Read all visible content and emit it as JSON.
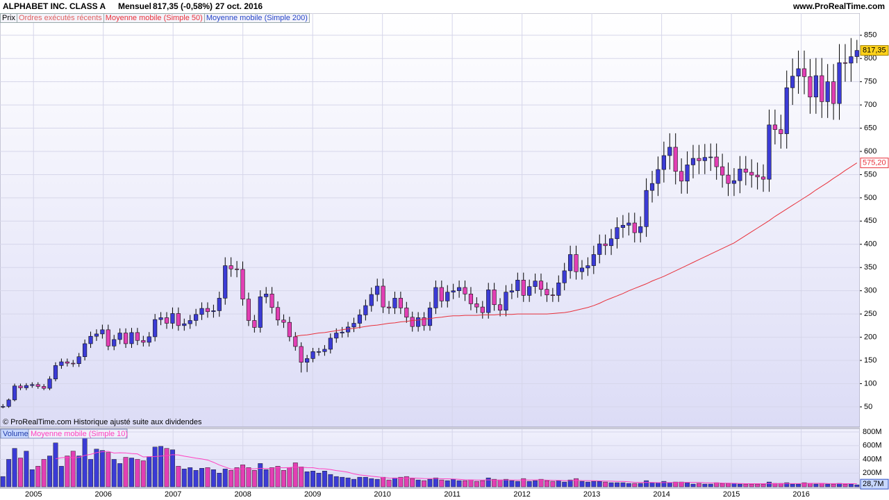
{
  "chart_data": [
    {
      "type": "candlestick",
      "title": "ALPHABET INC. CLASS A",
      "period": "Mensuel",
      "last_change": "817,35 (-0,58%)",
      "date": "27 oct. 2016",
      "source": "www.ProRealTime.com",
      "legend_items": [
        {
          "name": "Prix",
          "color": "#000000"
        },
        {
          "name": "Ordres exécutés récents",
          "color": "#e06060"
        },
        {
          "name": "Moyenne mobile (Simple 200)",
          "color": "#2545c8"
        }
      ],
      "note": "© ProRealTime.com  Historique ajusté suite aux dividendes",
      "up_color": "#3b3bd6",
      "down_color": "#e23fb4",
      "xlim": [
        2004.52,
        2016.84
      ],
      "xticks": [
        2005,
        2006,
        2007,
        2008,
        2009,
        2010,
        2011,
        2012,
        2013,
        2014,
        2015,
        2016
      ],
      "ylim": [
        8,
        896
      ],
      "yticks": [
        50,
        100,
        150,
        200,
        250,
        300,
        350,
        400,
        450,
        500,
        550,
        600,
        650,
        700,
        750,
        800,
        850
      ],
      "grid": true,
      "last_label": "817,35",
      "open": [
        50,
        51,
        65,
        95,
        91,
        96,
        98,
        94,
        90,
        110,
        139,
        147,
        144,
        143,
        158,
        186,
        202,
        207,
        216,
        181,
        195,
        209,
        186,
        210,
        193,
        189,
        201,
        238,
        242,
        230,
        251,
        225,
        229,
        236,
        249,
        262,
        255,
        257,
        284,
        354,
        347,
        346,
        282,
        236,
        221,
        287,
        293,
        264,
        237,
        232,
        201,
        180,
        146,
        154,
        169,
        169,
        174,
        198,
        209,
        211,
        222,
        230,
        248,
        268,
        292,
        310,
        265,
        263,
        284,
        263,
        243,
        223,
        242,
        225,
        263,
        307,
        278,
        297,
        300,
        307,
        293,
        272,
        265,
        253,
        302,
        270,
        258,
        297,
        300,
        323,
        290,
        309,
        321,
        303,
        291,
        290,
        317,
        343,
        378,
        341,
        349,
        354,
        378,
        401,
        397,
        412,
        436,
        441,
        446,
        425,
        438,
        516,
        531,
        561,
        591,
        609,
        557,
        536,
        571,
        585,
        580,
        587,
        588,
        567,
        549,
        531,
        537,
        562,
        555,
        549,
        545,
        540,
        657,
        647,
        638,
        737,
        762,
        778,
        761,
        717,
        763,
        707,
        750,
        703,
        791,
        790,
        804
      ],
      "high": [
        56,
        68,
        100,
        100,
        101,
        103,
        103,
        99,
        116,
        146,
        154,
        154,
        151,
        166,
        195,
        212,
        217,
        227,
        227,
        205,
        219,
        219,
        220,
        220,
        203,
        211,
        250,
        254,
        254,
        264,
        264,
        240,
        248,
        261,
        275,
        275,
        270,
        298,
        372,
        372,
        364,
        363,
        296,
        248,
        301,
        308,
        308,
        277,
        249,
        244,
        211,
        189,
        162,
        177,
        177,
        183,
        208,
        219,
        222,
        233,
        242,
        260,
        281,
        307,
        326,
        326,
        278,
        298,
        298,
        276,
        255,
        254,
        254,
        276,
        322,
        322,
        312,
        315,
        322,
        322,
        308,
        286,
        278,
        317,
        317,
        284,
        312,
        315,
        339,
        339,
        324,
        337,
        337,
        318,
        306,
        333,
        360,
        397,
        397,
        366,
        372,
        397,
        421,
        421,
        433,
        458,
        463,
        468,
        468,
        460,
        542,
        558,
        589,
        621,
        639,
        639,
        585,
        600,
        614,
        614,
        616,
        617,
        617,
        595,
        576,
        564,
        590,
        590,
        583,
        576,
        572,
        690,
        690,
        679,
        774,
        800,
        817,
        817,
        799,
        801,
        801,
        788,
        788,
        831,
        831,
        844,
        840
      ],
      "low": [
        47,
        48,
        62,
        86,
        86,
        91,
        89,
        86,
        86,
        105,
        132,
        137,
        136,
        136,
        150,
        177,
        192,
        197,
        172,
        172,
        185,
        177,
        177,
        183,
        180,
        180,
        191,
        226,
        218,
        218,
        214,
        214,
        218,
        224,
        237,
        242,
        242,
        244,
        270,
        330,
        329,
        268,
        224,
        210,
        210,
        273,
        251,
        225,
        220,
        191,
        171,
        124,
        125,
        146,
        160,
        160,
        165,
        188,
        199,
        200,
        211,
        219,
        236,
        255,
        277,
        252,
        250,
        250,
        250,
        231,
        212,
        212,
        214,
        214,
        250,
        264,
        264,
        282,
        285,
        278,
        258,
        252,
        240,
        240,
        257,
        245,
        245,
        282,
        285,
        276,
        276,
        294,
        288,
        276,
        276,
        276,
        301,
        326,
        324,
        324,
        332,
        336,
        359,
        377,
        377,
        391,
        414,
        419,
        404,
        404,
        416,
        490,
        504,
        533,
        561,
        529,
        509,
        509,
        542,
        551,
        551,
        558,
        539,
        522,
        504,
        504,
        510,
        527,
        522,
        518,
        513,
        513,
        615,
        606,
        606,
        700,
        724,
        723,
        681,
        681,
        672,
        672,
        668,
        668,
        750,
        750,
        790
      ],
      "close": [
        51,
        65,
        95,
        91,
        96,
        98,
        94,
        90,
        110,
        139,
        147,
        144,
        143,
        158,
        186,
        202,
        207,
        216,
        181,
        195,
        209,
        186,
        210,
        193,
        189,
        201,
        238,
        242,
        230,
        251,
        225,
        229,
        236,
        249,
        262,
        255,
        257,
        284,
        354,
        347,
        346,
        282,
        236,
        221,
        287,
        293,
        264,
        237,
        232,
        201,
        180,
        146,
        154,
        169,
        169,
        174,
        198,
        209,
        211,
        222,
        230,
        248,
        268,
        292,
        310,
        265,
        263,
        284,
        263,
        243,
        223,
        242,
        225,
        263,
        307,
        278,
        297,
        300,
        307,
        293,
        272,
        265,
        253,
        302,
        270,
        258,
        297,
        300,
        323,
        290,
        309,
        321,
        303,
        291,
        290,
        317,
        343,
        378,
        341,
        349,
        354,
        378,
        401,
        397,
        412,
        436,
        441,
        446,
        425,
        438,
        516,
        531,
        561,
        591,
        609,
        557,
        536,
        571,
        585,
        580,
        587,
        588,
        567,
        549,
        531,
        537,
        562,
        555,
        549,
        545,
        540,
        657,
        647,
        638,
        737,
        762,
        778,
        761,
        717,
        763,
        707,
        750,
        703,
        791,
        790,
        804,
        817.35
      ],
      "series": [
        {
          "name": "Moyenne mobile (Simple 50)",
          "color": "#e8303a",
          "last_label": "575,20",
          "values": [
            null,
            null,
            null,
            null,
            null,
            null,
            null,
            null,
            null,
            null,
            null,
            null,
            null,
            null,
            null,
            null,
            null,
            null,
            null,
            null,
            null,
            null,
            null,
            null,
            null,
            null,
            null,
            null,
            null,
            null,
            null,
            null,
            null,
            null,
            null,
            null,
            null,
            null,
            null,
            null,
            null,
            null,
            null,
            null,
            null,
            null,
            null,
            null,
            null,
            null,
            202,
            204,
            205,
            207,
            209,
            210,
            212,
            214,
            216,
            218,
            219,
            221,
            223,
            225,
            226,
            228,
            230,
            231,
            233,
            234,
            236,
            237,
            239,
            240,
            242,
            243,
            245,
            246,
            246,
            247,
            247,
            247,
            248,
            248,
            248,
            249,
            249,
            249,
            250,
            250,
            250,
            250,
            250,
            250,
            251,
            252,
            253,
            255,
            258,
            261,
            264,
            268,
            273,
            279,
            284,
            289,
            294,
            300,
            305,
            310,
            315,
            321,
            326,
            331,
            337,
            343,
            349,
            355,
            361,
            367,
            373,
            379,
            385,
            391,
            397,
            403,
            411,
            419,
            427,
            435,
            443,
            451,
            460,
            468,
            476,
            484,
            492,
            500,
            508,
            517,
            525,
            533,
            542,
            550,
            559,
            567,
            575.2
          ]
        }
      ]
    },
    {
      "type": "bar",
      "title": "Volume",
      "ylim": [
        0,
        840
      ],
      "yticks": [
        {
          "value": 200,
          "label": "200M"
        },
        {
          "value": 400,
          "label": "400M"
        },
        {
          "value": 600,
          "label": "600M"
        },
        {
          "value": 800,
          "label": "800M"
        }
      ],
      "last_label": "28,7M",
      "values": [
        150,
        400,
        560,
        420,
        520,
        250,
        300,
        400,
        450,
        640,
        300,
        450,
        520,
        450,
        820,
        400,
        550,
        530,
        500,
        400,
        340,
        430,
        420,
        400,
        380,
        440,
        580,
        590,
        560,
        540,
        300,
        260,
        280,
        240,
        270,
        280,
        250,
        200,
        260,
        240,
        280,
        320,
        280,
        240,
        340,
        250,
        280,
        300,
        240,
        280,
        350,
        290,
        220,
        230,
        200,
        230,
        180,
        150,
        140,
        130,
        110,
        140,
        140,
        120,
        110,
        140,
        100,
        130,
        140,
        150,
        120,
        100,
        90,
        110,
        130,
        100,
        90,
        110,
        90,
        90,
        100,
        80,
        90,
        130,
        110,
        100,
        110,
        90,
        80,
        120,
        80,
        90,
        110,
        90,
        80,
        90,
        70,
        100,
        120,
        80,
        70,
        80,
        80,
        70,
        60,
        60,
        60,
        50,
        50,
        50,
        90,
        60,
        60,
        80,
        60,
        70,
        70,
        60,
        40,
        50,
        40,
        40,
        60,
        50,
        50,
        50,
        40,
        40,
        40,
        40,
        40,
        70,
        50,
        50,
        60,
        40,
        40,
        60,
        50,
        40,
        50,
        40,
        40,
        50,
        40,
        40,
        28.7
      ],
      "series": [
        {
          "name": "Moyenne mobile (Simple 10)",
          "color": "#ff40c0",
          "values": [
            null,
            null,
            null,
            null,
            null,
            null,
            null,
            null,
            null,
            409,
            424,
            429,
            425,
            428,
            458,
            473,
            498,
            511,
            516,
            492,
            496,
            494,
            484,
            479,
            435,
            439,
            442,
            448,
            454,
            468,
            464,
            447,
            433,
            417,
            406,
            390,
            357,
            318,
            288,
            258,
            256,
            262,
            262,
            262,
            269,
            266,
            269,
            279,
            277,
            281,
            288,
            285,
            279,
            278,
            264,
            262,
            252,
            237,
            227,
            212,
            188,
            173,
            165,
            154,
            145,
            136,
            128,
            126,
            126,
            128,
            129,
            125,
            120,
            119,
            121,
            117,
            116,
            114,
            109,
            103,
            101,
            99,
            99,
            101,
            99,
            99,
            101,
            99,
            98,
            101,
            99,
            100,
            102,
            98,
            95,
            94,
            90,
            91,
            95,
            91,
            90,
            89,
            86,
            84,
            82,
            79,
            78,
            73,
            66,
            63,
            65,
            63,
            61,
            62,
            62,
            63,
            64,
            65,
            64,
            64,
            59,
            57,
            57,
            54,
            53,
            51,
            48,
            46,
            46,
            45,
            45,
            48,
            47,
            47,
            48,
            47,
            47,
            49,
            50,
            50,
            51,
            48,
            47,
            47,
            45,
            45,
            44
          ]
        }
      ]
    }
  ]
}
